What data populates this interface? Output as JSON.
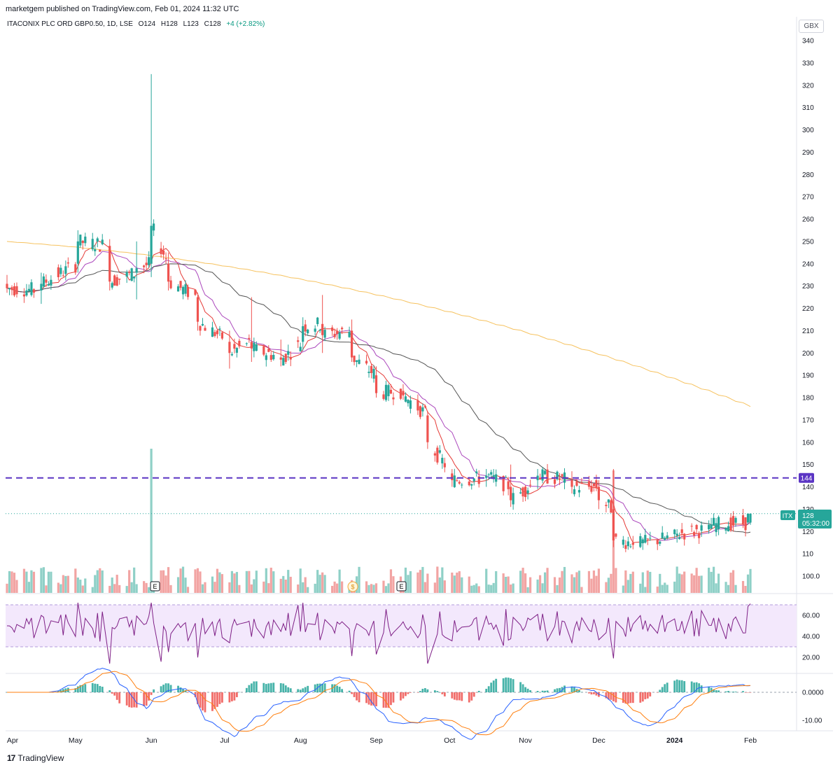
{
  "header": {
    "published_by": "marketgem published on TradingView.com, Feb 01, 2024 11:32 UTC"
  },
  "legend": {
    "symbol": "ITACONIX PLC ORD GBP0.50, 1D, LSE",
    "open": "O124",
    "high": "H128",
    "low": "L123",
    "close": "C128",
    "change": "+4 (+2.82%)"
  },
  "currency": "GBX",
  "price_axis": [
    "340",
    "330",
    "320",
    "310",
    "300",
    "290",
    "280",
    "270",
    "260",
    "250",
    "240",
    "230",
    "220",
    "210",
    "200",
    "190",
    "180",
    "170",
    "160",
    "150",
    "140",
    "130",
    "120",
    "110",
    "100.0"
  ],
  "markers": {
    "hline_label": "144",
    "ticker": "ITX",
    "last_price": "128",
    "countdown": "05:32:00",
    "events": [
      "E",
      "$",
      "E"
    ]
  },
  "rsi_axis": [
    "60.00",
    "40.00",
    "20.00"
  ],
  "macd_axis": [
    "0.0000",
    "-10.00"
  ],
  "time_axis": [
    "Apr",
    "May",
    "Jun",
    "Jul",
    "Aug",
    "Sep",
    "Oct",
    "Nov",
    "Dec",
    "2024",
    "Feb"
  ],
  "footer": {
    "brand": "TradingView"
  },
  "colors": {
    "up": "#26a69a",
    "down": "#ef5350",
    "vol_up": "#8fd0c7",
    "vol_down": "#f2a4a3",
    "ma_fast": "#e53935",
    "ma_mid": "#ab47bc",
    "ma_slow": "#555555",
    "ma_200": "#f6c25f",
    "hline": "#5b35c4",
    "rsi_line": "#7e1f86",
    "rsi_band": "#f1e4fb",
    "macd": "#2962ff",
    "signal": "#ff7f0e"
  },
  "chart_data": {
    "type": "candlestick",
    "x": [
      "Apr",
      "May",
      "Jun",
      "Jul",
      "Aug",
      "Sep",
      "Oct",
      "Nov",
      "Dec",
      "2024",
      "Feb"
    ],
    "ohlc_series": [
      {
        "t": "2023-04-03",
        "o": 231,
        "h": 235,
        "l": 227,
        "c": 229
      },
      {
        "t": "2023-04-17",
        "o": 228,
        "h": 236,
        "l": 222,
        "c": 231
      },
      {
        "t": "2023-05-02",
        "o": 240,
        "h": 255,
        "l": 236,
        "c": 250
      },
      {
        "t": "2023-05-15",
        "o": 248,
        "h": 251,
        "l": 228,
        "c": 232
      },
      {
        "t": "2023-05-26",
        "o": 236,
        "h": 250,
        "l": 224,
        "c": 238
      },
      {
        "t": "2023-06-01",
        "o": 240,
        "h": 325,
        "l": 234,
        "c": 257
      },
      {
        "t": "2023-06-08",
        "o": 240,
        "h": 245,
        "l": 228,
        "c": 232
      },
      {
        "t": "2023-06-20",
        "o": 225,
        "h": 227,
        "l": 210,
        "c": 214
      },
      {
        "t": "2023-07-03",
        "o": 205,
        "h": 210,
        "l": 193,
        "c": 200
      },
      {
        "t": "2023-07-12",
        "o": 205,
        "h": 225,
        "l": 196,
        "c": 202
      },
      {
        "t": "2023-07-24",
        "o": 198,
        "h": 206,
        "l": 194,
        "c": 197
      },
      {
        "t": "2023-08-02",
        "o": 205,
        "h": 216,
        "l": 201,
        "c": 212
      },
      {
        "t": "2023-08-10",
        "o": 213,
        "h": 226,
        "l": 200,
        "c": 208
      },
      {
        "t": "2023-08-22",
        "o": 210,
        "h": 215,
        "l": 196,
        "c": 198
      },
      {
        "t": "2023-09-01",
        "o": 190,
        "h": 194,
        "l": 180,
        "c": 182
      },
      {
        "t": "2023-09-12",
        "o": 183,
        "h": 186,
        "l": 179,
        "c": 181
      },
      {
        "t": "2023-09-22",
        "o": 172,
        "h": 174,
        "l": 157,
        "c": 160
      },
      {
        "t": "2023-10-02",
        "o": 146,
        "h": 148,
        "l": 140,
        "c": 143
      },
      {
        "t": "2023-10-16",
        "o": 144,
        "h": 148,
        "l": 140,
        "c": 145
      },
      {
        "t": "2023-10-26",
        "o": 140,
        "h": 150,
        "l": 131,
        "c": 134
      },
      {
        "t": "2023-11-06",
        "o": 143,
        "h": 148,
        "l": 139,
        "c": 145
      },
      {
        "t": "2023-11-20",
        "o": 143,
        "h": 147,
        "l": 137,
        "c": 140
      },
      {
        "t": "2023-12-01",
        "o": 140,
        "h": 143,
        "l": 130,
        "c": 134
      },
      {
        "t": "2023-12-07",
        "o": 130,
        "h": 148,
        "l": 113,
        "c": 116
      },
      {
        "t": "2023-12-15",
        "o": 115,
        "h": 118,
        "l": 112,
        "c": 114
      },
      {
        "t": "2024-01-02",
        "o": 118,
        "h": 121,
        "l": 115,
        "c": 119
      },
      {
        "t": "2024-01-15",
        "o": 121,
        "h": 125,
        "l": 119,
        "c": 123
      },
      {
        "t": "2024-02-01",
        "o": 124,
        "h": 128,
        "l": 123,
        "c": 128
      }
    ],
    "moving_averages": {
      "ma_200_start": 250,
      "ma_200_end": 176,
      "ma_50_start": 250,
      "ma_50_end": 126
    },
    "horizontal_line": 144,
    "last_price": 128,
    "rsi": {
      "last": 71,
      "upper_band": 70,
      "lower_band": 30
    },
    "macd": {
      "last": 0
    },
    "ylim": [
      95,
      340
    ]
  }
}
